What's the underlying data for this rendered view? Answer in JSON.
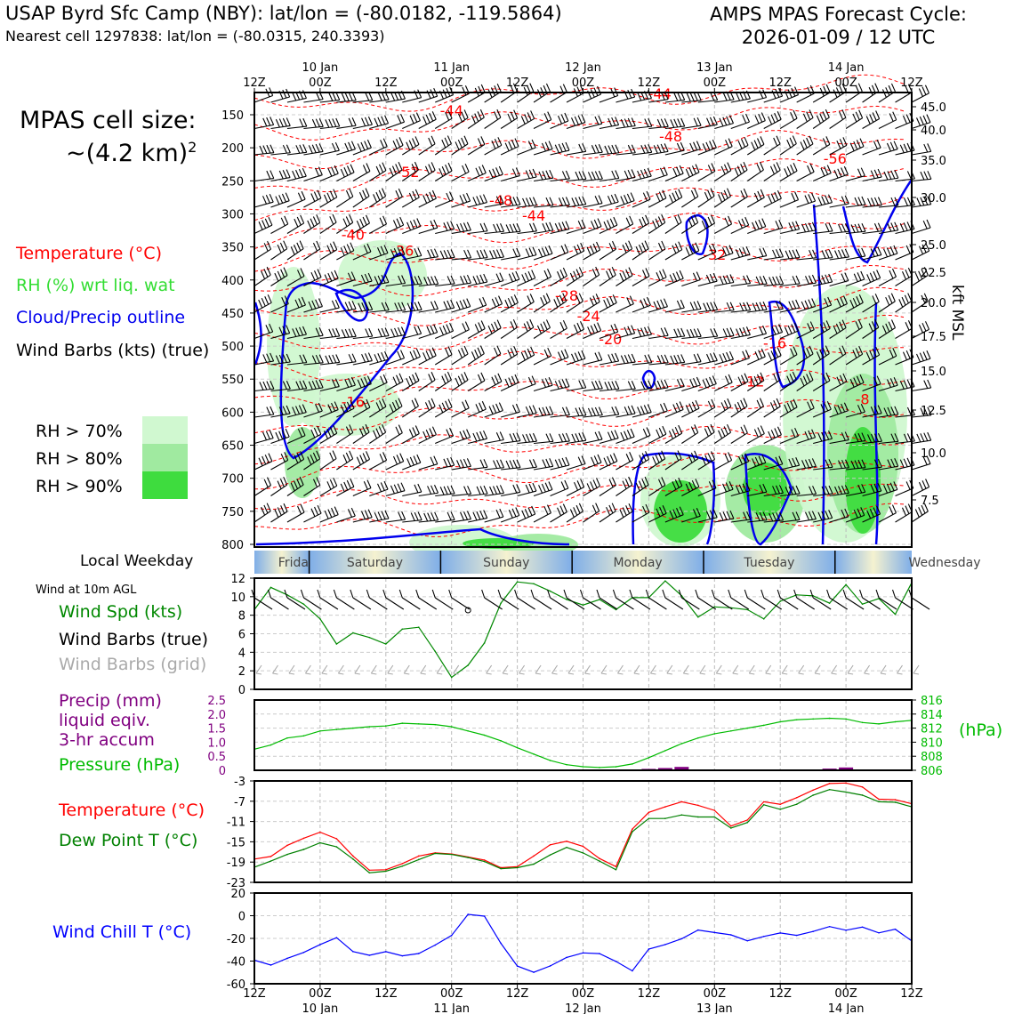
{
  "header": {
    "title_left": "USAP Byrd Sfc Camp (NBY): lat/lon = (-80.0182, -119.5864)",
    "subtitle_left": "Nearest cell 1297838: lat/lon = (-80.0315, 240.3393)",
    "title_right_line1": "AMPS MPAS Forecast Cycle:",
    "title_right_line2": "2026-01-09 / 12 UTC"
  },
  "legend": {
    "cell_size_line1": "MPAS cell size:",
    "cell_size_line2": "~(4.2 km)",
    "cell_size_sup": "2",
    "temperature": "Temperature (°C)",
    "rh": "RH (%) wrt liq. wat",
    "cloud": "Cloud/Precip outline",
    "wind": "Wind Barbs (kts) (true)",
    "rh_levels": [
      {
        "label": "RH > 70%",
        "color": "#d0f8d0"
      },
      {
        "label": "RH > 80%",
        "color": "#a0eaa0"
      },
      {
        "label": "RH > 90%",
        "color": "#3edc3e"
      }
    ]
  },
  "colors": {
    "temperature": "#ff0000",
    "rh": "#33dd33",
    "cloud": "#0000ee",
    "wind_spd": "#008800",
    "grid_barbs": "#aaaaaa",
    "precip": "#800080",
    "pressure": "#00bb00",
    "dewpoint": "#008000",
    "windchill": "#0000ff"
  },
  "time_axis": {
    "labels": [
      "12Z",
      "00Z",
      "12Z",
      "00Z",
      "12Z",
      "00Z",
      "12Z",
      "00Z",
      "12Z",
      "00Z",
      "12Z"
    ],
    "dates": [
      "10 Jan",
      "11 Jan",
      "12 Jan",
      "13 Jan",
      "14 Jan"
    ]
  },
  "weekday": {
    "label": "Local Weekday",
    "days": [
      "Friday",
      "Saturday",
      "Sunday",
      "Monday",
      "Tuesday",
      "Wednesday"
    ]
  },
  "chart_data": [
    {
      "type": "heatmap",
      "id": "upper-air",
      "y_left_ticks": [
        150,
        200,
        250,
        300,
        350,
        400,
        450,
        500,
        550,
        600,
        650,
        700,
        750,
        800
      ],
      "y_right_ticks": [
        "45.0",
        "40.0",
        "35.0",
        "30.0",
        "25.0",
        "22.5",
        "20.0",
        "17.5",
        "15.0",
        "12.5",
        "10.0",
        "7.5"
      ],
      "y_right_label": "kft MSL",
      "temp_contour_labels": [
        {
          "text": "-44",
          "t": 36,
          "p": 143
        },
        {
          "text": "-44",
          "t": 74,
          "p": 118
        },
        {
          "text": "-48",
          "t": 76,
          "p": 182
        },
        {
          "text": "-52",
          "t": 28,
          "p": 236
        },
        {
          "text": "-56",
          "t": 106,
          "p": 216
        },
        {
          "text": "-48",
          "t": 45,
          "p": 279
        },
        {
          "text": "-44",
          "t": 51,
          "p": 302
        },
        {
          "text": "-40",
          "t": 18,
          "p": 331
        },
        {
          "text": "-36",
          "t": 27,
          "p": 355
        },
        {
          "text": "-32",
          "t": 84,
          "p": 361
        },
        {
          "text": "-28",
          "t": 57,
          "p": 423
        },
        {
          "text": "-24",
          "t": 61,
          "p": 454
        },
        {
          "text": "-20",
          "t": 65,
          "p": 489
        },
        {
          "text": "-16",
          "t": 95,
          "p": 495
        },
        {
          "text": "-12",
          "t": 91,
          "p": 553
        },
        {
          "text": "-16",
          "t": 18,
          "p": 584
        },
        {
          "text": "-8",
          "t": 111,
          "p": 580
        }
      ]
    },
    {
      "type": "line",
      "id": "surface-wind",
      "title": "Wind at 10m AGL",
      "labels": [
        "Wind Spd (kts)",
        "Wind Barbs (true)",
        "Wind Barbs (grid)"
      ],
      "x_hours": [
        0,
        3,
        6,
        9,
        12,
        15,
        18,
        21,
        24,
        27,
        30,
        33,
        36,
        39,
        42,
        45,
        48,
        51,
        54,
        57,
        60,
        63,
        66,
        69,
        72,
        75,
        78,
        81,
        84,
        87,
        90,
        93,
        96,
        99,
        102,
        105,
        108,
        111,
        114,
        117,
        120
      ],
      "y": [
        8.6,
        11.0,
        10.2,
        9.2,
        7.6,
        4.9,
        6.1,
        5.6,
        4.9,
        6.5,
        6.7,
        4.1,
        1.3,
        2.6,
        5.0,
        9.3,
        11.6,
        11.4,
        10.6,
        9.7,
        9.1,
        9.7,
        8.6,
        9.9,
        9.9,
        11.7,
        10.1,
        7.8,
        8.9,
        8.8,
        8.6,
        7.6,
        9.5,
        10.2,
        10.1,
        9.3,
        11.3,
        9.2,
        9.8,
        8.1,
        11.5
      ],
      "ylim": [
        0,
        12
      ],
      "y_ticks": [
        0,
        2,
        4,
        6,
        8,
        10,
        12
      ]
    },
    {
      "type": "line",
      "id": "precip-pressure",
      "labels": [
        "Precip (mm)",
        "liquid eqiv.",
        "3-hr accum",
        "Pressure (hPa)"
      ],
      "right_unit": "(hPa)",
      "x_hours": [
        0,
        3,
        6,
        9,
        12,
        15,
        18,
        21,
        24,
        27,
        30,
        33,
        36,
        39,
        42,
        45,
        48,
        51,
        54,
        57,
        60,
        63,
        66,
        69,
        72,
        75,
        78,
        81,
        84,
        87,
        90,
        93,
        96,
        99,
        102,
        105,
        108,
        111,
        114,
        117,
        120
      ],
      "pressure": [
        809.0,
        809.6,
        810.6,
        810.9,
        811.6,
        811.8,
        812.0,
        812.2,
        812.3,
        812.7,
        812.6,
        812.5,
        812.2,
        811.6,
        811.0,
        810.2,
        809.2,
        808.3,
        807.4,
        806.8,
        806.5,
        806.4,
        806.5,
        806.9,
        807.8,
        808.8,
        809.8,
        810.6,
        811.2,
        811.6,
        812.0,
        812.4,
        812.9,
        813.2,
        813.3,
        813.4,
        813.3,
        812.8,
        812.6,
        812.9,
        813.1
      ],
      "precip_x": [
        72,
        75,
        78,
        105,
        108
      ],
      "precip": [
        0.05,
        0.08,
        0.12,
        0.06,
        0.1
      ],
      "precip_ylim": [
        0,
        2.5
      ],
      "precip_ticks": [
        "0",
        "0.5",
        "1.0",
        "1.5",
        "2.0",
        "2.5"
      ],
      "pressure_ylim": [
        806,
        816
      ],
      "pressure_ticks": [
        "806",
        "808",
        "810",
        "812",
        "814",
        "816"
      ]
    },
    {
      "type": "line",
      "id": "temperature",
      "labels": [
        "Temperature (°C)",
        "Dew Point T (°C)"
      ],
      "x_hours": [
        0,
        3,
        6,
        9,
        12,
        15,
        18,
        21,
        24,
        27,
        30,
        33,
        36,
        39,
        42,
        45,
        48,
        51,
        54,
        57,
        60,
        63,
        66,
        69,
        72,
        75,
        78,
        81,
        84,
        87,
        90,
        93,
        96,
        99,
        102,
        105,
        108,
        111,
        114,
        117,
        120
      ],
      "temperature": [
        -18.4,
        -17.9,
        -15.7,
        -14.3,
        -13.1,
        -14.4,
        -17.8,
        -20.6,
        -20.5,
        -19.3,
        -17.8,
        -17.2,
        -17.4,
        -18.0,
        -18.6,
        -20.1,
        -19.9,
        -17.8,
        -15.6,
        -14.9,
        -15.9,
        -18.3,
        -19.9,
        -12.5,
        -9.2,
        -8.1,
        -7.1,
        -7.8,
        -8.8,
        -11.9,
        -10.7,
        -7.1,
        -7.6,
        -6.3,
        -4.8,
        -3.5,
        -3.4,
        -4.2,
        -6.6,
        -6.7,
        -7.5
      ],
      "dewpoint": [
        -20.0,
        -18.8,
        -17.5,
        -16.5,
        -15.2,
        -16.0,
        -18.4,
        -21.1,
        -20.8,
        -19.8,
        -18.5,
        -17.3,
        -17.5,
        -18.1,
        -18.9,
        -20.3,
        -20.1,
        -19.4,
        -17.6,
        -16.1,
        -17.2,
        -18.8,
        -20.5,
        -13.0,
        -10.4,
        -10.4,
        -9.7,
        -10.1,
        -10.1,
        -12.3,
        -11.2,
        -7.7,
        -8.6,
        -7.6,
        -5.8,
        -4.7,
        -5.2,
        -5.8,
        -7.1,
        -7.2,
        -8.1
      ],
      "ylim": [
        -23,
        -3
      ],
      "y_ticks": [
        "-3",
        "-7",
        "-11",
        "-15",
        "-19",
        "-23"
      ]
    },
    {
      "type": "line",
      "id": "wind-chill",
      "labels": [
        "Wind Chill T (°C)"
      ],
      "x_hours": [
        0,
        3,
        6,
        9,
        12,
        15,
        18,
        21,
        24,
        27,
        30,
        33,
        36,
        39,
        42,
        45,
        48,
        51,
        54,
        57,
        60,
        63,
        66,
        69,
        72,
        75,
        78,
        81,
        84,
        87,
        90,
        93,
        96,
        99,
        102,
        105,
        108,
        111,
        114,
        117,
        120
      ],
      "y": [
        -39.2,
        -43.5,
        -37.6,
        -32.4,
        -25.4,
        -19.4,
        -31.6,
        -34.9,
        -31.7,
        -35.4,
        -33.3,
        -25.9,
        -17.4,
        1.2,
        -0.4,
        -24.3,
        -44.4,
        -49.9,
        -44.3,
        -36.8,
        -32.8,
        -33.4,
        -40.3,
        -48.6,
        -29.4,
        -25.4,
        -20.3,
        -12.6,
        -14.8,
        -16.9,
        -22.1,
        -18.3,
        -15.2,
        -17.3,
        -13.9,
        -9.6,
        -12.8,
        -10.0,
        -15.1,
        -11.9,
        -22.2
      ],
      "ylim": [
        -60,
        20
      ],
      "y_ticks": [
        "20",
        "0",
        "-20",
        "-40",
        "-60"
      ]
    }
  ]
}
